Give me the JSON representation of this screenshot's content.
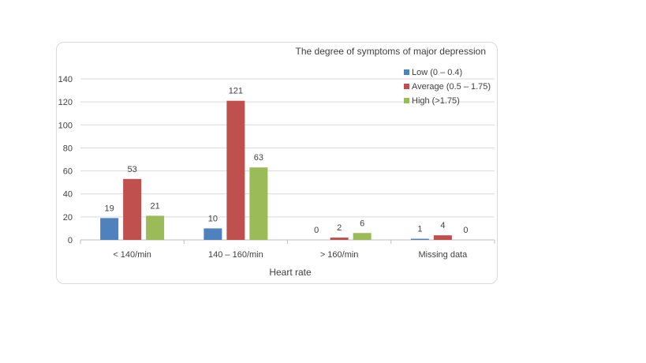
{
  "chart_data": {
    "type": "bar",
    "title": "",
    "legend_title": "The degree of symptoms of major depression",
    "xlabel": "Heart rate",
    "ylabel": "",
    "categories": [
      "< 140/min",
      "140 – 160/min",
      "> 160/min",
      "Missing data"
    ],
    "series": [
      {
        "name": "Low (0 – 0.4)",
        "values": [
          19,
          10,
          0,
          1
        ],
        "color": "#4f81bd"
      },
      {
        "name": "Average (0.5 – 1.75)",
        "values": [
          53,
          121,
          2,
          4
        ],
        "color": "#c0504d"
      },
      {
        "name": "High (>1.75)",
        "values": [
          21,
          63,
          6,
          0
        ],
        "color": "#9bbb59"
      }
    ],
    "ylim": [
      0,
      140
    ],
    "yticks": [
      0,
      20,
      40,
      60,
      80,
      100,
      120,
      140
    ],
    "grid": true,
    "legend_position": "top-right"
  }
}
